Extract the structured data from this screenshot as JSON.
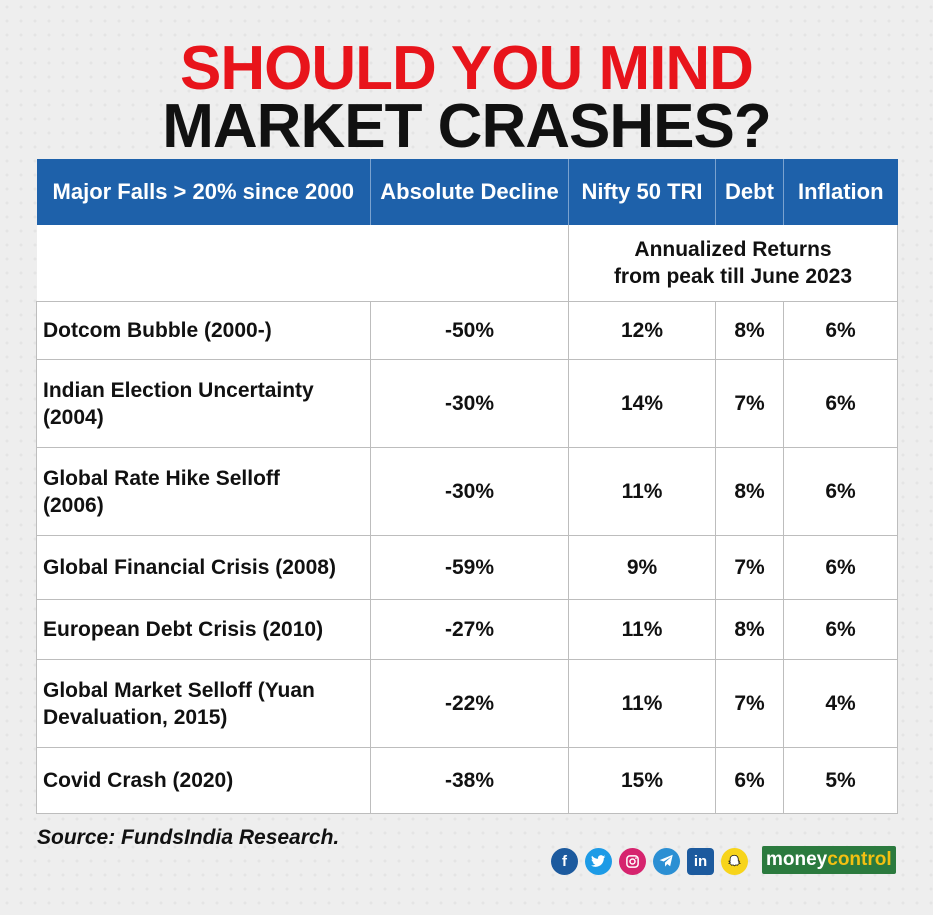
{
  "title": {
    "line1": "SHOULD YOU MIND",
    "line2": "MARKET CRASHES?"
  },
  "chart_data": {
    "type": "table",
    "title": "SHOULD YOU MIND MARKET CRASHES?",
    "columns": [
      "Major Falls > 20% since 2000",
      "Absolute Decline",
      "Nifty 50 TRI",
      "Debt",
      "Inflation"
    ],
    "subheader": {
      "line1": "Annualized Returns",
      "line2": "from peak till June 2023"
    },
    "rows": [
      {
        "event_lines": [
          "Dotcom Bubble (2000-)"
        ],
        "decline": "-50%",
        "nifty": "12%",
        "debt": "8%",
        "inflation": "6%"
      },
      {
        "event_lines": [
          "Indian Election Uncertainty",
          "(2004)"
        ],
        "decline": "-30%",
        "nifty": "14%",
        "debt": "7%",
        "inflation": "6%"
      },
      {
        "event_lines": [
          "Global Rate Hike Selloff",
          "(2006)"
        ],
        "decline": "-30%",
        "nifty": "11%",
        "debt": "8%",
        "inflation": "6%"
      },
      {
        "event_lines": [
          "Global Financial Crisis (2008)"
        ],
        "decline": "-59%",
        "nifty": "9%",
        "debt": "7%",
        "inflation": "6%"
      },
      {
        "event_lines": [
          "European Debt Crisis (2010)"
        ],
        "decline": "-27%",
        "nifty": "11%",
        "debt": "8%",
        "inflation": "6%"
      },
      {
        "event_lines": [
          "Global Market Selloff (Yuan",
          "Devaluation, 2015)"
        ],
        "decline": "-22%",
        "nifty": "11%",
        "debt": "7%",
        "inflation": "4%"
      },
      {
        "event_lines": [
          "Covid Crash (2020)"
        ],
        "decline": "-38%",
        "nifty": "15%",
        "debt": "6%",
        "inflation": "5%"
      }
    ],
    "header_color": "#1e61aa"
  },
  "source": "Source: FundsIndia Research.",
  "footer": {
    "social_icons": [
      "facebook-icon",
      "twitter-icon",
      "instagram-icon",
      "telegram-icon",
      "linkedin-icon",
      "snapchat-icon"
    ],
    "logo": {
      "part1": "money",
      "part2": "control"
    }
  },
  "colors": {
    "title_red": "#e8141b",
    "title_black": "#111111",
    "header_blue": "#1e61aa"
  }
}
